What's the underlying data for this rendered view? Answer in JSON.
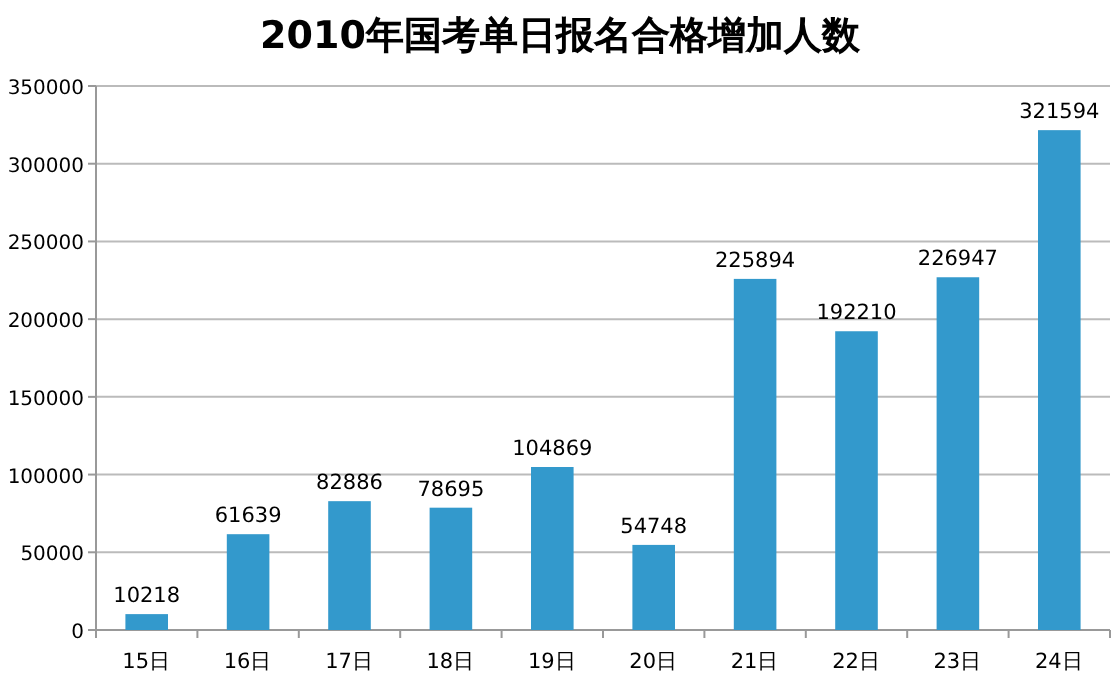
{
  "chart_data": {
    "type": "bar",
    "title": "2010年国考单日报名合格增加人数",
    "categories": [
      "15日",
      "16日",
      "17日",
      "18日",
      "19日",
      "20日",
      "21日",
      "22日",
      "23日",
      "24日"
    ],
    "values": [
      10218,
      61639,
      82886,
      78695,
      104869,
      54748,
      225894,
      192210,
      226947,
      321594
    ],
    "color": "#3399cc",
    "ylim": [
      0,
      350000
    ],
    "yticks": [
      0,
      50000,
      100000,
      150000,
      200000,
      250000,
      300000,
      350000
    ],
    "grid": "y",
    "data_labels": true
  }
}
